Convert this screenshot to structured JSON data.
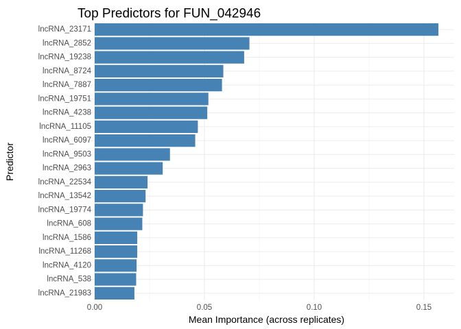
{
  "chart_data": {
    "type": "bar",
    "orientation": "horizontal",
    "title": "Top Predictors for FUN_042946",
    "xlabel": "Mean Importance (across replicates)",
    "ylabel": "Predictor",
    "xlim": [
      0,
      0.1635
    ],
    "x_ticks": [
      0,
      0.05,
      0.1,
      0.15
    ],
    "x_tick_labels": [
      "0.00",
      "0.05",
      "0.10",
      "0.15"
    ],
    "grid": true,
    "bar_color": "#4682B4",
    "categories": [
      "lncRNA_23171",
      "lncRNA_2852",
      "lncRNA_19238",
      "lncRNA_8724",
      "lncRNA_7887",
      "lncRNA_19751",
      "lncRNA_4238",
      "lncRNA_11105",
      "lncRNA_6097",
      "lncRNA_9503",
      "lncRNA_2963",
      "lncRNA_22534",
      "lncRNA_13542",
      "lncRNA_19774",
      "lncRNA_608",
      "lncRNA_1586",
      "lncRNA_11268",
      "lncRNA_4120",
      "lncRNA_538",
      "lncRNA_21983"
    ],
    "values": [
      0.1566,
      0.0705,
      0.0681,
      0.0586,
      0.058,
      0.0518,
      0.0513,
      0.047,
      0.0458,
      0.0343,
      0.031,
      0.0241,
      0.0232,
      0.022,
      0.0217,
      0.0194,
      0.0194,
      0.0191,
      0.0189,
      0.0181
    ]
  }
}
